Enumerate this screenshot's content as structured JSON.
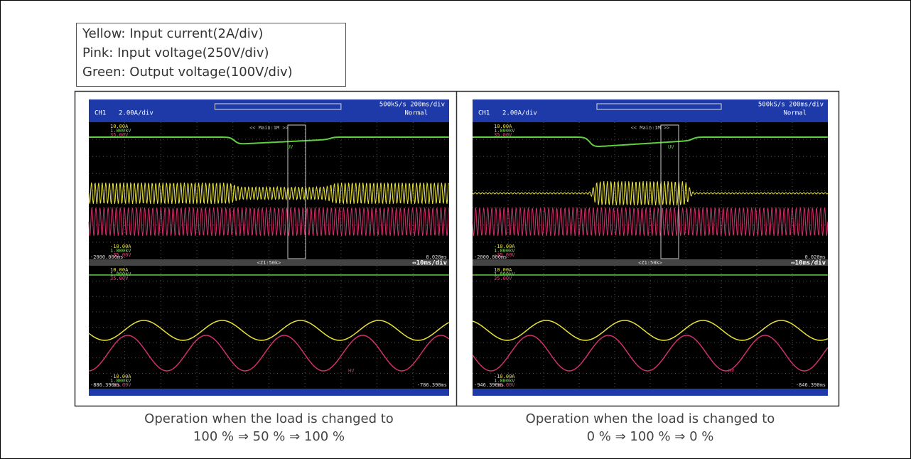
{
  "legend": {
    "lines": [
      "Yellow: Input current(2A/div)",
      "Pink: Input voltage(250V/div)",
      "Green: Output voltage(100V/div)"
    ]
  },
  "scopes": [
    {
      "channel": "CH1",
      "scale": "2.00A/div",
      "sample_rate": "500kS/s 200ms/div",
      "mode": "Normal",
      "main_label": "<< Main:1M >>",
      "zoom_label": "<Z1:50k>",
      "zoom_scale": "⇔10ms/div",
      "range_top": [
        "10.00A",
        "1.000kV",
        "35.00V"
      ],
      "range_bottom": [
        "-10.00A",
        "1.000kV",
        "-35.00V"
      ],
      "main_start": "-2000.000ms",
      "main_end": "0.020ms",
      "zoom_start": "-886.390ms",
      "zoom_end": "-786.390ms",
      "trace_labels": [
        "UV",
        "HV"
      ],
      "caption": [
        "Operation when the load is changed to",
        "100 % ⇒ 50 % ⇒ 100 %"
      ]
    },
    {
      "channel": "CH1",
      "scale": "2.00A/div",
      "sample_rate": "500kS/s 200ms/div",
      "mode": "Normal",
      "main_label": "<< Main:1M >>",
      "zoom_label": "<Z1:50k>",
      "zoom_scale": "⇔10ms/div",
      "range_top": [
        "10.00A",
        "1.000kV",
        "35.00V"
      ],
      "range_bottom": [
        "-10.00A",
        "1.000kV",
        "-35.00V"
      ],
      "main_start": "-2000.000ms",
      "main_end": "0.020ms",
      "zoom_start": "-946.390ms",
      "zoom_end": "-846.390ms",
      "trace_labels": [
        "UV",
        "HV"
      ],
      "caption": [
        "Operation when the load is changed to",
        "0 % ⇒ 100 % ⇒ 0 %"
      ]
    }
  ]
}
